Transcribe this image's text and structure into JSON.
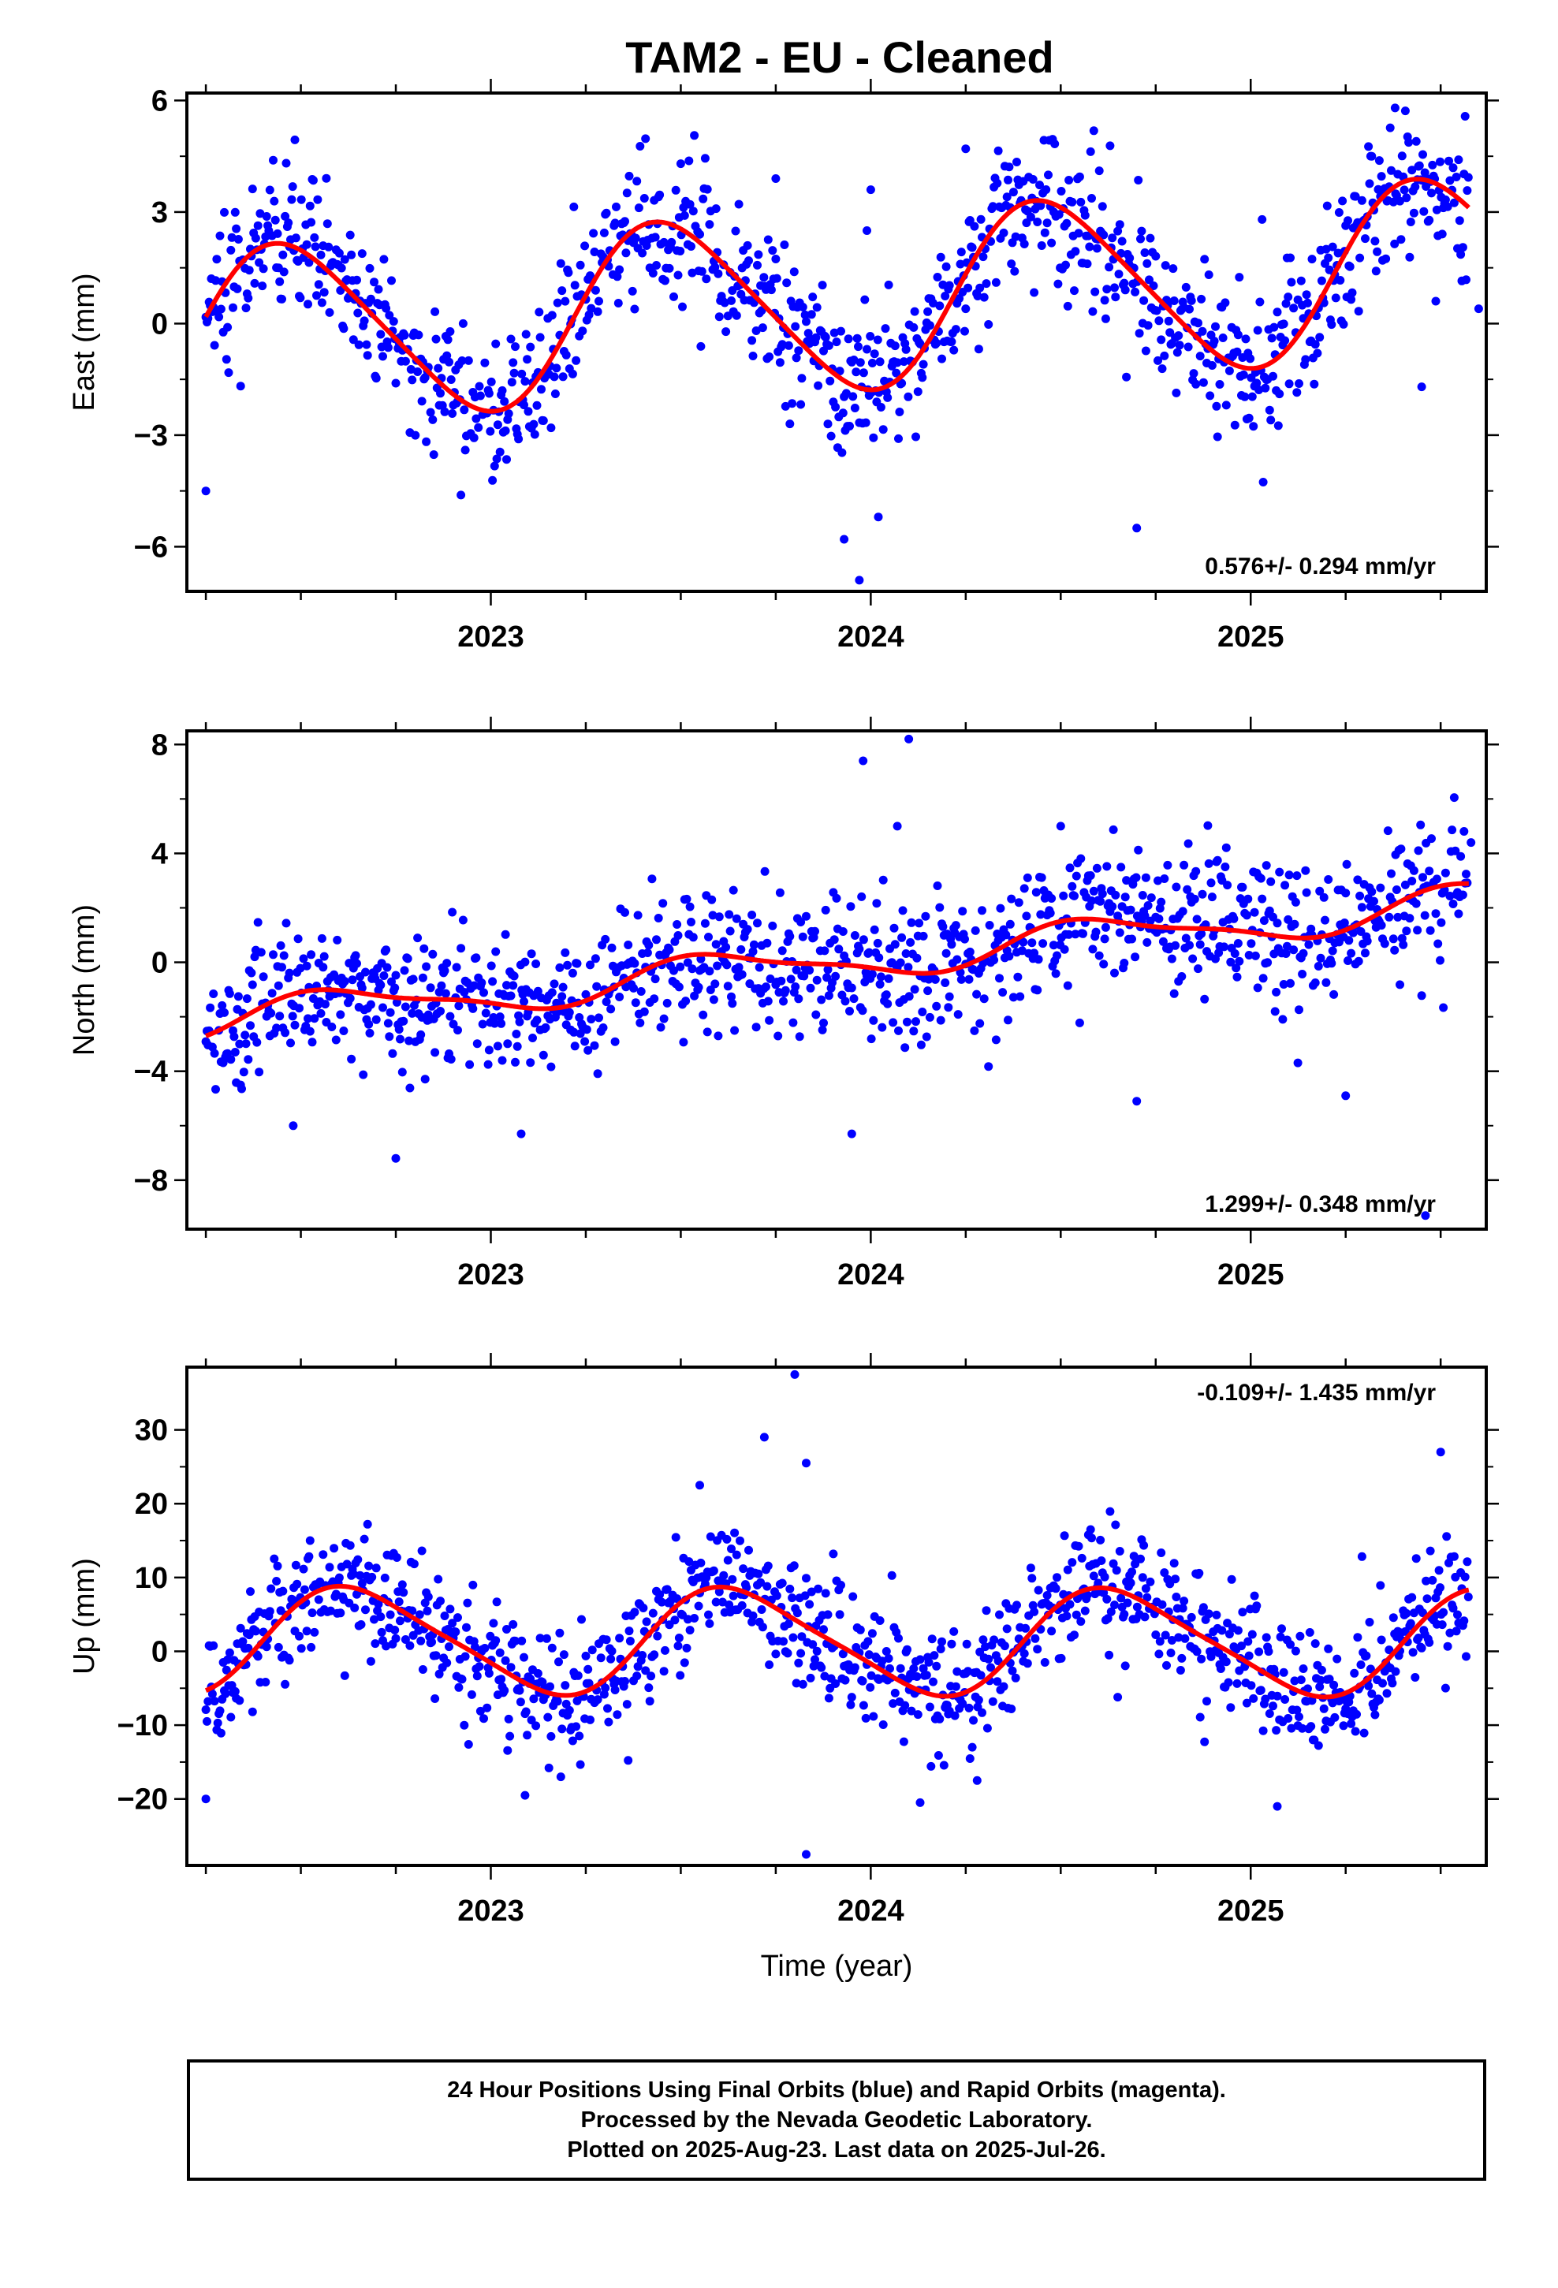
{
  "title": "TAM2  - EU - Cleaned",
  "chart_data": [
    {
      "type": "scatter",
      "name": "east",
      "ylabel": "East (mm)",
      "xlabel": "",
      "xlim": [
        2022.2,
        2025.62
      ],
      "ylim": [
        -7.2,
        6.2
      ],
      "xticks": [
        2023,
        2024,
        2025
      ],
      "yticks": [
        -6,
        -3,
        0,
        3,
        6
      ],
      "ytick_labels": [
        "−6",
        "−3",
        "0",
        "3",
        "6"
      ],
      "rate_text": "0.576+/- 0.294 mm/yr",
      "rate_position": "bottom-right",
      "trend": {
        "offset": -0.4,
        "rate": 0.576,
        "amp": 2.35,
        "phase": 2022.22,
        "amp2": 0.3
      },
      "scatter_sd": 1.0,
      "points_per_year": 350,
      "outliers": [
        {
          "x": 2023.75,
          "y": 3.9
        },
        {
          "x": 2023.93,
          "y": -5.8
        },
        {
          "x": 2023.99,
          "y": 2.5
        },
        {
          "x": 2024.0,
          "y": 3.6
        },
        {
          "x": 2023.97,
          "y": -6.9
        },
        {
          "x": 2024.02,
          "y": -5.2
        },
        {
          "x": 2024.25,
          "y": 4.7
        },
        {
          "x": 2024.7,
          "y": -5.5
        },
        {
          "x": 2022.25,
          "y": -4.5
        },
        {
          "x": 2025.03,
          "y": 2.8
        },
        {
          "x": 2025.38,
          "y": 5.8
        },
        {
          "x": 2025.45,
          "y": -1.7
        },
        {
          "x": 2025.6,
          "y": 0.4
        },
        {
          "x": 2023.5,
          "y": 4.3
        }
      ],
      "series": [
        {
          "name": "Final Orbits",
          "color": "#0000ff"
        },
        {
          "name": "Model fit",
          "color": "#ff0000"
        }
      ]
    },
    {
      "type": "scatter",
      "name": "north",
      "ylabel": "North (mm)",
      "xlabel": "",
      "xlim": [
        2022.2,
        2025.62
      ],
      "ylim": [
        -9.8,
        8.5
      ],
      "xticks": [
        2023,
        2024,
        2025
      ],
      "yticks": [
        -8,
        -4,
        0,
        4,
        8
      ],
      "ytick_labels": [
        "−8",
        "−4",
        "0",
        "4",
        "8"
      ],
      "rate_text": "1.299+/- 0.348 mm/yr",
      "rate_position": "bottom-right",
      "trend": {
        "offset": -2.2,
        "rate": 1.299,
        "amp": 0.65,
        "phase": 2022.35,
        "amp2": 0.2
      },
      "scatter_sd": 1.3,
      "points_per_year": 350,
      "outliers": [
        {
          "x": 2023.98,
          "y": 7.4
        },
        {
          "x": 2024.1,
          "y": 8.2
        },
        {
          "x": 2024.07,
          "y": 5.0
        },
        {
          "x": 2022.75,
          "y": -7.2
        },
        {
          "x": 2023.08,
          "y": -6.3
        },
        {
          "x": 2023.95,
          "y": -6.3
        },
        {
          "x": 2024.7,
          "y": -5.1
        },
        {
          "x": 2025.25,
          "y": -4.9
        },
        {
          "x": 2025.46,
          "y": -9.3
        },
        {
          "x": 2025.58,
          "y": 4.4
        },
        {
          "x": 2024.5,
          "y": 5.0
        },
        {
          "x": 2022.48,
          "y": -6.0
        }
      ],
      "series": [
        {
          "name": "Final Orbits",
          "color": "#0000ff"
        },
        {
          "name": "Model fit",
          "color": "#ff0000"
        }
      ]
    },
    {
      "type": "scatter",
      "name": "up",
      "ylabel": "Up (mm)",
      "xlabel": "Time (year)",
      "xlim": [
        2022.2,
        2025.62
      ],
      "ylim": [
        -29,
        38.5
      ],
      "xticks": [
        2023,
        2024,
        2025
      ],
      "yticks": [
        -20,
        -10,
        0,
        10,
        20,
        30
      ],
      "ytick_labels": [
        "−20",
        "−10",
        "0",
        "10",
        "20",
        "30"
      ],
      "rate_text": "-0.109+/- 1.435 mm/yr",
      "rate_position": "top-right",
      "trend": {
        "offset": 1.5,
        "rate": -0.109,
        "amp": 7.0,
        "phase": 2022.4,
        "amp2": 1.2
      },
      "scatter_sd": 4.2,
      "points_per_year": 350,
      "outliers": [
        {
          "x": 2023.8,
          "y": 37.5
        },
        {
          "x": 2023.72,
          "y": 29.0
        },
        {
          "x": 2023.83,
          "y": 25.5
        },
        {
          "x": 2023.55,
          "y": 22.5
        },
        {
          "x": 2023.83,
          "y": -27.5
        },
        {
          "x": 2024.28,
          "y": -17.5
        },
        {
          "x": 2025.07,
          "y": -21.0
        },
        {
          "x": 2025.5,
          "y": 27.0
        },
        {
          "x": 2022.25,
          "y": -20.0
        },
        {
          "x": 2023.09,
          "y": -19.5
        },
        {
          "x": 2024.13,
          "y": -20.5
        }
      ],
      "series": [
        {
          "name": "Final Orbits",
          "color": "#0000ff"
        },
        {
          "name": "Model fit",
          "color": "#ff0000"
        }
      ]
    }
  ],
  "footer": {
    "line1": "24 Hour Positions Using Final Orbits (blue) and Rapid Orbits (magenta).",
    "line2": "Processed by the Nevada Geodetic Laboratory.",
    "line3": "Plotted on 2025-Aug-23. Last data on 2025-Jul-26."
  }
}
